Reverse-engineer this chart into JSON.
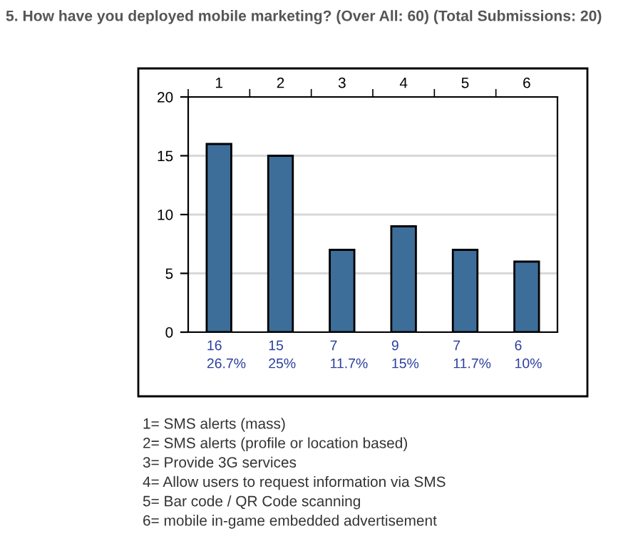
{
  "chart_data": {
    "type": "bar",
    "title": "5. How have you deployed mobile marketing? (Over All: 60) (Total Submissions: 20)",
    "categories": [
      "1",
      "2",
      "3",
      "4",
      "5",
      "6"
    ],
    "values": [
      16,
      15,
      7,
      9,
      7,
      6
    ],
    "value_labels": [
      "16\n26.7%",
      "15\n25%",
      "7\n11.7%",
      "9\n15%",
      "7\n11.7%",
      "6\n10%"
    ],
    "color": "#3d6e9a",
    "ylim": [
      0,
      20
    ],
    "yticks": [
      0,
      5,
      10,
      15,
      20
    ],
    "grid": "y",
    "annotations": [
      "1= SMS alerts (mass)",
      "2= SMS alerts (profile or location based)",
      "3= Provide 3G services",
      "4= Allow users to request information via SMS",
      "5= Bar code / QR Code scanning",
      "6= mobile in-game embedded advertisement"
    ]
  }
}
